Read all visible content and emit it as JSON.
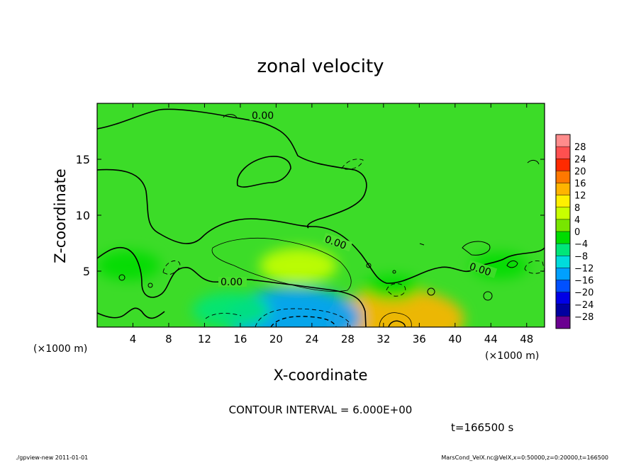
{
  "chart_data": {
    "type": "heatmap",
    "title": "zonal velocity",
    "xlabel": "X-coordinate",
    "ylabel": "Z-coordinate",
    "x_unit": "(×1000 m)",
    "y_unit": "(×1000 m)",
    "xlim": [
      0,
      50
    ],
    "ylim": [
      0,
      20
    ],
    "x_ticks": [
      4,
      8,
      12,
      16,
      20,
      24,
      28,
      32,
      36,
      40,
      44,
      48
    ],
    "y_ticks": [
      5,
      10,
      15
    ],
    "contour_labels": [
      "0.00",
      "0.00",
      "0.00",
      "0.00"
    ],
    "contour_interval_text": "CONTOUR INTERVAL = 6.000E+00",
    "time_text": "t=166500 s",
    "colorbar": {
      "levels": [
        28,
        24,
        20,
        16,
        12,
        8,
        4,
        0,
        -4,
        -8,
        -12,
        -16,
        -20,
        -24,
        -28
      ],
      "colors": [
        "#ff8c8c",
        "#ff5050",
        "#ff2a00",
        "#ff7800",
        "#ffb400",
        "#fff000",
        "#c8ff00",
        "#78e600",
        "#00dc00",
        "#00e678",
        "#00dcdc",
        "#00a0ff",
        "#0050ff",
        "#0000e6",
        "#0000a0",
        "#6a0090"
      ]
    },
    "features": [
      {
        "kind": "positive",
        "x": 22.5,
        "z": 5.5,
        "value": 6
      },
      {
        "kind": "positive",
        "x": 33.5,
        "z": 0.7,
        "value": 14
      },
      {
        "kind": "negative",
        "x": 22.0,
        "z": 0.8,
        "value": -14
      },
      {
        "kind": "negative",
        "x": 15.0,
        "z": 1.5,
        "value": -6
      },
      {
        "kind": "negative",
        "x": 3.5,
        "z": 5.5,
        "value": -4
      },
      {
        "kind": "negative",
        "x": 33.0,
        "z": 3.5,
        "value": -3
      },
      {
        "kind": "negative",
        "x": 45.0,
        "z": 5.5,
        "value": -3
      }
    ]
  },
  "footer": {
    "left": "./gpview-new   2011-01-01",
    "right": "MarsCond_VelX.nc@VelX,x=0:50000,z=0:20000,t=166500"
  }
}
